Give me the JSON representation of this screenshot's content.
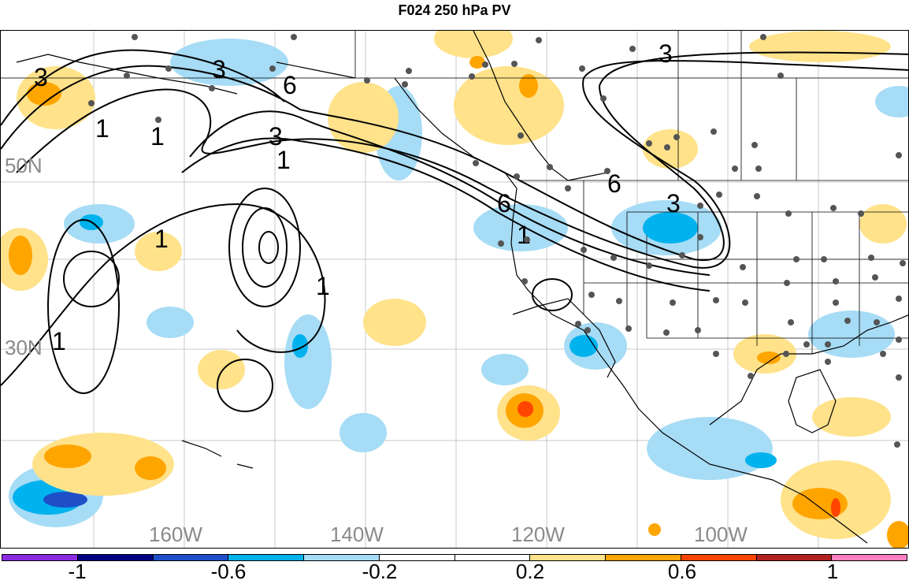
{
  "title": "F024 250 hPa PV",
  "lat_labels": [
    "50N",
    "30N"
  ],
  "lon_labels": [
    "160W",
    "140W",
    "120W",
    "100W"
  ],
  "contour_labels": [
    "3",
    "3",
    "6",
    "3",
    "1",
    "1",
    "1",
    "6",
    "1",
    "3",
    "6",
    "3",
    "1",
    "1",
    "1"
  ],
  "colorbar": {
    "colors": [
      "#8a2be2",
      "#000080",
      "#1e4fc8",
      "#00b2ee",
      "#a6dcf5",
      "#ffffff",
      "#ffffff",
      "#ffe28a",
      "#ffa500",
      "#ff4500",
      "#b22222",
      "#ff80c0"
    ],
    "tick_labels": [
      "-1",
      "-0.6",
      "-0.2",
      "0.2",
      "0.6",
      "1"
    ]
  }
}
